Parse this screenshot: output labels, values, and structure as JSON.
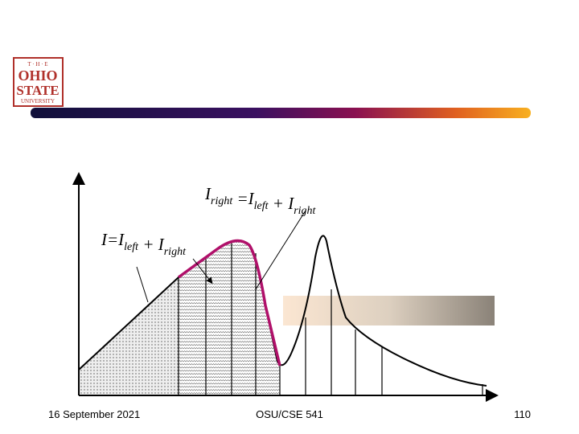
{
  "logo": {
    "top": "T · H · E",
    "line1": "OHIO",
    "line2": "STATE",
    "line3": "UNIVERSITY"
  },
  "equation_top": [
    {
      "main": "I",
      "sub": "right"
    },
    {
      "main": " =I",
      "sub": "left"
    },
    {
      "main": " + I",
      "sub": "right"
    }
  ],
  "equation_left": [
    {
      "main": "I=I",
      "sub": "left"
    },
    {
      "main": " + I",
      "sub": "right"
    }
  ],
  "footer": {
    "date": "16 September 2021",
    "course": "OSU/CSE 541",
    "page": "110"
  }
}
